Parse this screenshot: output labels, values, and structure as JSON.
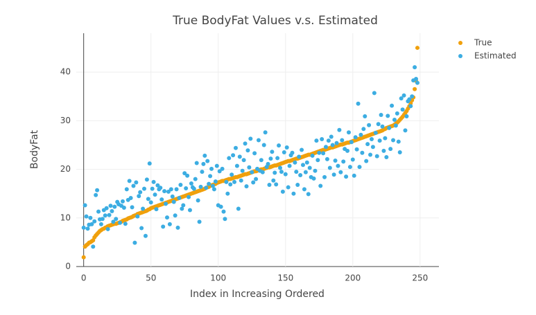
{
  "chart_data": {
    "type": "scatter",
    "title": "True BodyFat Values v.s. Estimated",
    "x_label": "Index in Increasing Ordered",
    "y_label": "BodyFat",
    "xlim": [
      -5.5,
      264
    ],
    "ylim": [
      0,
      48
    ],
    "xticks": [
      0,
      50,
      100,
      150,
      200,
      250
    ],
    "yticks": [
      0,
      10,
      20,
      30,
      40
    ],
    "grid": true,
    "legend": "top-right",
    "x": [
      0,
      1,
      2,
      3,
      4,
      5,
      6,
      7,
      8,
      9,
      10,
      11,
      12,
      13,
      14,
      15,
      16,
      17,
      18,
      19,
      20,
      21,
      22,
      23,
      24,
      25,
      26,
      27,
      28,
      29,
      30,
      31,
      32,
      33,
      34,
      35,
      36,
      37,
      38,
      39,
      40,
      41,
      42,
      43,
      44,
      45,
      46,
      47,
      48,
      49,
      50,
      51,
      52,
      53,
      54,
      55,
      56,
      57,
      58,
      59,
      60,
      61,
      62,
      63,
      64,
      65,
      66,
      67,
      68,
      69,
      70,
      71,
      72,
      73,
      74,
      75,
      76,
      77,
      78,
      79,
      80,
      81,
      82,
      83,
      84,
      85,
      86,
      87,
      88,
      89,
      90,
      91,
      92,
      93,
      94,
      95,
      96,
      97,
      98,
      99,
      100,
      101,
      102,
      103,
      104,
      105,
      106,
      107,
      108,
      109,
      110,
      111,
      112,
      113,
      114,
      115,
      116,
      117,
      118,
      119,
      120,
      121,
      122,
      123,
      124,
      125,
      126,
      127,
      128,
      129,
      130,
      131,
      132,
      133,
      134,
      135,
      136,
      137,
      138,
      139,
      140,
      141,
      142,
      143,
      144,
      145,
      146,
      147,
      148,
      149,
      150,
      151,
      152,
      153,
      154,
      155,
      156,
      157,
      158,
      159,
      160,
      161,
      162,
      163,
      164,
      165,
      166,
      167,
      168,
      169,
      170,
      171,
      172,
      173,
      174,
      175,
      176,
      177,
      178,
      179,
      180,
      181,
      182,
      183,
      184,
      185,
      186,
      187,
      188,
      189,
      190,
      191,
      192,
      193,
      194,
      195,
      196,
      197,
      198,
      199,
      200,
      201,
      202,
      203,
      204,
      205,
      206,
      207,
      208,
      209,
      210,
      211,
      212,
      213,
      214,
      215,
      216,
      217,
      218,
      219,
      220,
      221,
      222,
      223,
      224,
      225,
      226,
      227,
      228,
      229,
      230,
      231,
      232,
      233,
      234,
      235,
      236,
      237,
      238,
      239,
      240,
      241,
      242,
      243,
      244,
      245,
      246,
      247,
      248
    ],
    "series": [
      {
        "name": "True",
        "color": "#f0a00c",
        "values": [
          1.9,
          4.1,
          4.4,
          4.6,
          4.9,
          5.0,
          5.2,
          5.4,
          6.0,
          6.4,
          6.7,
          7.0,
          7.3,
          7.5,
          7.7,
          7.8,
          8.0,
          8.1,
          8.3,
          8.4,
          8.5,
          8.6,
          8.7,
          8.8,
          8.8,
          8.9,
          9.0,
          9.1,
          9.2,
          9.4,
          9.5,
          9.6,
          9.7,
          9.9,
          10.0,
          10.1,
          10.2,
          10.4,
          10.5,
          10.6,
          10.8,
          10.9,
          11.0,
          11.1,
          11.2,
          11.3,
          11.4,
          11.5,
          11.7,
          11.8,
          12.0,
          12.1,
          12.2,
          12.3,
          12.4,
          12.5,
          12.6,
          12.7,
          12.8,
          12.9,
          13.0,
          13.1,
          13.2,
          13.3,
          13.4,
          13.5,
          13.6,
          13.7,
          13.8,
          13.9,
          14.0,
          14.1,
          14.2,
          14.3,
          14.4,
          14.5,
          14.6,
          14.7,
          14.8,
          14.9,
          15.0,
          15.1,
          15.2,
          15.3,
          15.4,
          15.5,
          15.6,
          15.7,
          15.8,
          15.9,
          16.0,
          16.2,
          16.3,
          16.4,
          16.6,
          16.7,
          16.8,
          16.9,
          17.0,
          17.2,
          17.3,
          17.4,
          17.5,
          17.6,
          17.6,
          17.7,
          17.8,
          17.9,
          18.0,
          18.0,
          18.1,
          18.2,
          18.3,
          18.4,
          18.4,
          18.5,
          18.6,
          18.7,
          18.8,
          18.9,
          19.0,
          19.0,
          19.1,
          19.2,
          19.3,
          19.4,
          19.5,
          19.6,
          19.6,
          19.7,
          19.8,
          19.9,
          20.0,
          20.0,
          20.1,
          20.2,
          20.3,
          20.4,
          20.4,
          20.5,
          20.6,
          20.7,
          20.8,
          20.8,
          20.9,
          21.0,
          21.1,
          21.2,
          21.3,
          21.4,
          21.5,
          21.6,
          21.7,
          21.7,
          21.8,
          21.9,
          22.0,
          22.1,
          22.2,
          22.2,
          22.3,
          22.4,
          22.5,
          22.6,
          22.7,
          22.8,
          22.9,
          23.0,
          23.0,
          23.1,
          23.2,
          23.3,
          23.4,
          23.5,
          23.6,
          23.7,
          23.8,
          23.9,
          24.0,
          24.0,
          24.1,
          24.2,
          24.3,
          24.4,
          24.5,
          24.5,
          24.6,
          24.7,
          24.8,
          24.9,
          25.0,
          25.1,
          25.1,
          25.2,
          25.3,
          25.4,
          25.5,
          25.5,
          25.6,
          25.7,
          25.8,
          25.9,
          26.0,
          26.1,
          26.2,
          26.3,
          26.4,
          26.5,
          26.6,
          26.7,
          26.8,
          26.9,
          27.0,
          27.1,
          27.2,
          27.3,
          27.4,
          27.5,
          27.6,
          27.7,
          27.8,
          27.9,
          28.0,
          28.2,
          28.3,
          28.5,
          28.6,
          28.7,
          28.8,
          28.9,
          29.0,
          29.2,
          29.4,
          29.6,
          29.9,
          30.2,
          30.5,
          30.8,
          31.2,
          31.6,
          32.0,
          32.5,
          33.0,
          33.6,
          34.2,
          34.8,
          36.5,
          38.2,
          45.0
        ]
      },
      {
        "name": "Estimated",
        "color": "#3cade2",
        "values": [
          8.0,
          12.6,
          10.3,
          7.8,
          8.6,
          10.0,
          8.7,
          4.1,
          9.3,
          14.7,
          15.7,
          11.3,
          9.7,
          8.7,
          9.8,
          11.6,
          10.5,
          12.0,
          7.7,
          10.6,
          12.5,
          11.4,
          9.2,
          12.3,
          9.8,
          13.3,
          12.8,
          9.0,
          12.5,
          13.4,
          12.1,
          8.8,
          15.9,
          13.7,
          17.6,
          14.1,
          12.2,
          16.6,
          4.9,
          17.3,
          10.3,
          14.5,
          15.3,
          7.9,
          11.9,
          16.0,
          6.3,
          17.9,
          13.9,
          21.2,
          13.2,
          16.0,
          17.4,
          14.8,
          11.8,
          16.7,
          15.9,
          16.2,
          13.8,
          8.2,
          15.5,
          12.9,
          10.1,
          15.4,
          8.7,
          15.9,
          14.4,
          13.3,
          10.5,
          15.9,
          8.0,
          14.1,
          16.8,
          11.9,
          12.6,
          19.2,
          16.1,
          18.7,
          14.3,
          11.6,
          17.1,
          16.3,
          16.0,
          18.0,
          21.3,
          13.6,
          9.2,
          16.4,
          19.5,
          21.1,
          22.8,
          16.2,
          21.7,
          17.0,
          18.6,
          20.1,
          16.6,
          15.9,
          17.5,
          20.7,
          12.6,
          19.6,
          12.3,
          20.1,
          11.3,
          9.8,
          17.4,
          15.0,
          22.3,
          16.9,
          18.9,
          22.9,
          17.4,
          24.4,
          20.7,
          11.9,
          22.6,
          17.7,
          19.7,
          21.9,
          25.3,
          16.5,
          23.9,
          20.4,
          26.3,
          19.4,
          17.3,
          23.3,
          18.0,
          20.1,
          26.0,
          19.7,
          21.9,
          19.4,
          25.0,
          27.6,
          20.5,
          21.1,
          16.8,
          22.2,
          23.6,
          17.7,
          19.3,
          16.9,
          22.3,
          24.9,
          20.3,
          19.5,
          15.4,
          23.5,
          19.0,
          24.5,
          16.3,
          20.7,
          22.9,
          23.4,
          15.0,
          21.4,
          19.5,
          16.8,
          22.6,
          18.8,
          24.0,
          20.9,
          15.9,
          19.4,
          21.4,
          14.9,
          20.3,
          18.4,
          22.8,
          18.1,
          19.7,
          25.9,
          21.9,
          23.4,
          16.6,
          26.2,
          23.3,
          18.4,
          24.6,
          22.1,
          25.9,
          20.3,
          26.7,
          25.0,
          18.9,
          21.8,
          25.4,
          20.7,
          28.1,
          19.4,
          26.0,
          21.6,
          24.2,
          18.5,
          23.8,
          27.6,
          20.5,
          25.6,
          22.0,
          18.7,
          26.6,
          24.1,
          33.5,
          20.5,
          27.1,
          23.4,
          28.3,
          30.9,
          21.7,
          25.2,
          29.1,
          23.0,
          26.2,
          24.6,
          35.7,
          27.5,
          22.7,
          29.3,
          25.9,
          31.2,
          28.8,
          23.8,
          26.4,
          22.5,
          31.0,
          28.5,
          24.2,
          33.1,
          26.0,
          30.2,
          29.0,
          31.5,
          25.7,
          23.5,
          34.6,
          32.3,
          35.2,
          28.0,
          30.9,
          34.0,
          34.4,
          33.0,
          35.0,
          38.3,
          41.0,
          38.6,
          37.8
        ]
      }
    ]
  }
}
